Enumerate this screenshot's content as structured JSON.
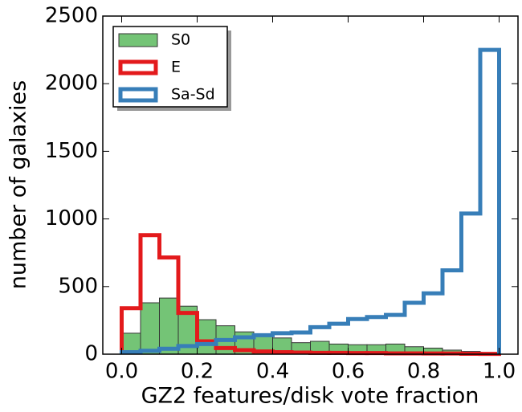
{
  "chart_data": {
    "type": "histogram",
    "xlabel": "GZ2 features/disk vote fraction",
    "ylabel": "number of galaxies",
    "bins": [
      0,
      0.05,
      0.1,
      0.15,
      0.2,
      0.25,
      0.3,
      0.35,
      0.4,
      0.45,
      0.5,
      0.55,
      0.6,
      0.65,
      0.7,
      0.75,
      0.8,
      0.85,
      0.9,
      0.95,
      1.0
    ],
    "series": [
      {
        "name": "S0",
        "color": "#74c476",
        "style": "filled",
        "values": [
          155,
          380,
          415,
          355,
          255,
          210,
          165,
          135,
          120,
          85,
          95,
          75,
          70,
          70,
          75,
          55,
          45,
          30,
          20,
          5
        ]
      },
      {
        "name": "E",
        "color": "#e31a1c",
        "style": "step",
        "values": [
          340,
          880,
          715,
          305,
          95,
          45,
          30,
          20,
          15,
          12,
          10,
          10,
          8,
          8,
          6,
          6,
          5,
          5,
          3,
          2
        ]
      },
      {
        "name": "Sa-Sd",
        "color": "#377eb8",
        "style": "step",
        "values": [
          15,
          25,
          40,
          60,
          75,
          105,
          125,
          140,
          155,
          160,
          200,
          225,
          260,
          275,
          290,
          380,
          450,
          620,
          1040,
          2250
        ]
      }
    ],
    "xlim": [
      -0.05,
      1.05
    ],
    "ylim": [
      0,
      2500
    ],
    "xticks": [
      {
        "value": 0,
        "label": "0.0"
      },
      {
        "value": 0.2,
        "label": "0.2"
      },
      {
        "value": 0.4,
        "label": "0.4"
      },
      {
        "value": 0.6,
        "label": "0.6"
      },
      {
        "value": 0.8,
        "label": "0.8"
      },
      {
        "value": 1.0,
        "label": "1.0"
      }
    ],
    "yticks": [
      0,
      500,
      1000,
      1500,
      2000,
      2500
    ],
    "legend": "upper left"
  }
}
